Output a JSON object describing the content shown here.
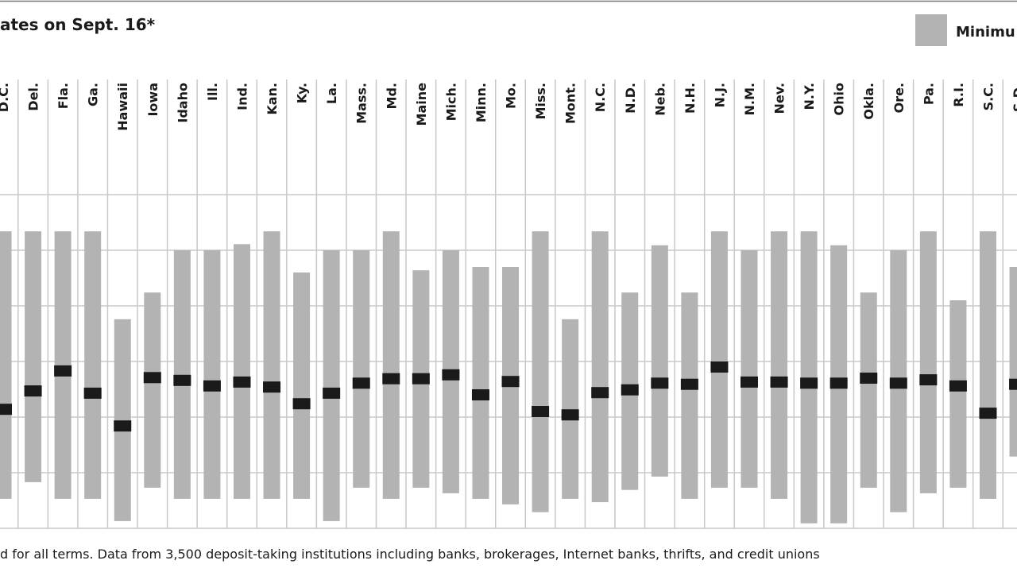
{
  "chart_data": {
    "type": "range",
    "title": "ates on Sept. 16*",
    "footnote": "d for all terms. Data from 3,500 deposit-taking institutions including banks, brokerages, Internet banks, thrifts, and credit unions",
    "legend": {
      "label": "Minimu",
      "color": "#b3b3b3"
    },
    "categories": [
      "D.C.",
      "Del.",
      "Fla.",
      "Ga.",
      "Hawaii",
      "Iowa",
      "Idaho",
      "Ill.",
      "Ind.",
      "Kan.",
      "Ky.",
      "La.",
      "Mass.",
      "Md.",
      "Maine",
      "Mich.",
      "Minn.",
      "Mo.",
      "Miss.",
      "Mont.",
      "N.C.",
      "N.D.",
      "Neb.",
      "N.H.",
      "N.J.",
      "N.M.",
      "Nev.",
      "N.Y.",
      "Ohio",
      "Okla.",
      "Ore.",
      "Pa.",
      "R.I.",
      "S.C.",
      "S.D."
    ],
    "low": [
      0.53,
      0.83,
      0.53,
      0.53,
      0.13,
      0.73,
      0.53,
      0.53,
      0.53,
      0.53,
      0.53,
      0.13,
      0.73,
      0.53,
      0.73,
      0.63,
      0.53,
      0.43,
      0.29,
      0.53,
      0.47,
      0.69,
      0.93,
      0.53,
      0.73,
      0.73,
      0.53,
      0.09,
      0.09,
      0.73,
      0.29,
      0.63,
      0.73,
      0.53,
      1.29
    ],
    "high": [
      5.34,
      5.34,
      5.34,
      5.34,
      3.76,
      4.24,
      5.0,
      5.0,
      5.11,
      5.34,
      4.6,
      5.0,
      5.0,
      5.34,
      4.64,
      5.0,
      4.7,
      4.7,
      5.34,
      3.76,
      5.34,
      4.24,
      5.09,
      4.24,
      5.34,
      5.0,
      5.34,
      5.34,
      5.09,
      4.24,
      5.0,
      5.34,
      4.1,
      5.34,
      4.7
    ],
    "average": [
      2.14,
      2.47,
      2.83,
      2.43,
      1.84,
      2.71,
      2.66,
      2.56,
      2.63,
      2.54,
      2.24,
      2.43,
      2.61,
      2.69,
      2.69,
      2.76,
      2.4,
      2.64,
      2.1,
      2.04,
      2.44,
      2.49,
      2.61,
      2.59,
      2.9,
      2.63,
      2.63,
      2.61,
      2.61,
      2.7,
      2.61,
      2.67,
      2.56,
      2.07,
      2.59
    ],
    "range_color": "#b3b3b3",
    "average_color": "#1a1a1a",
    "ylim": [
      0,
      8
    ],
    "yticks": [
      0,
      1,
      2,
      3,
      4,
      5,
      6
    ],
    "grid": true
  }
}
